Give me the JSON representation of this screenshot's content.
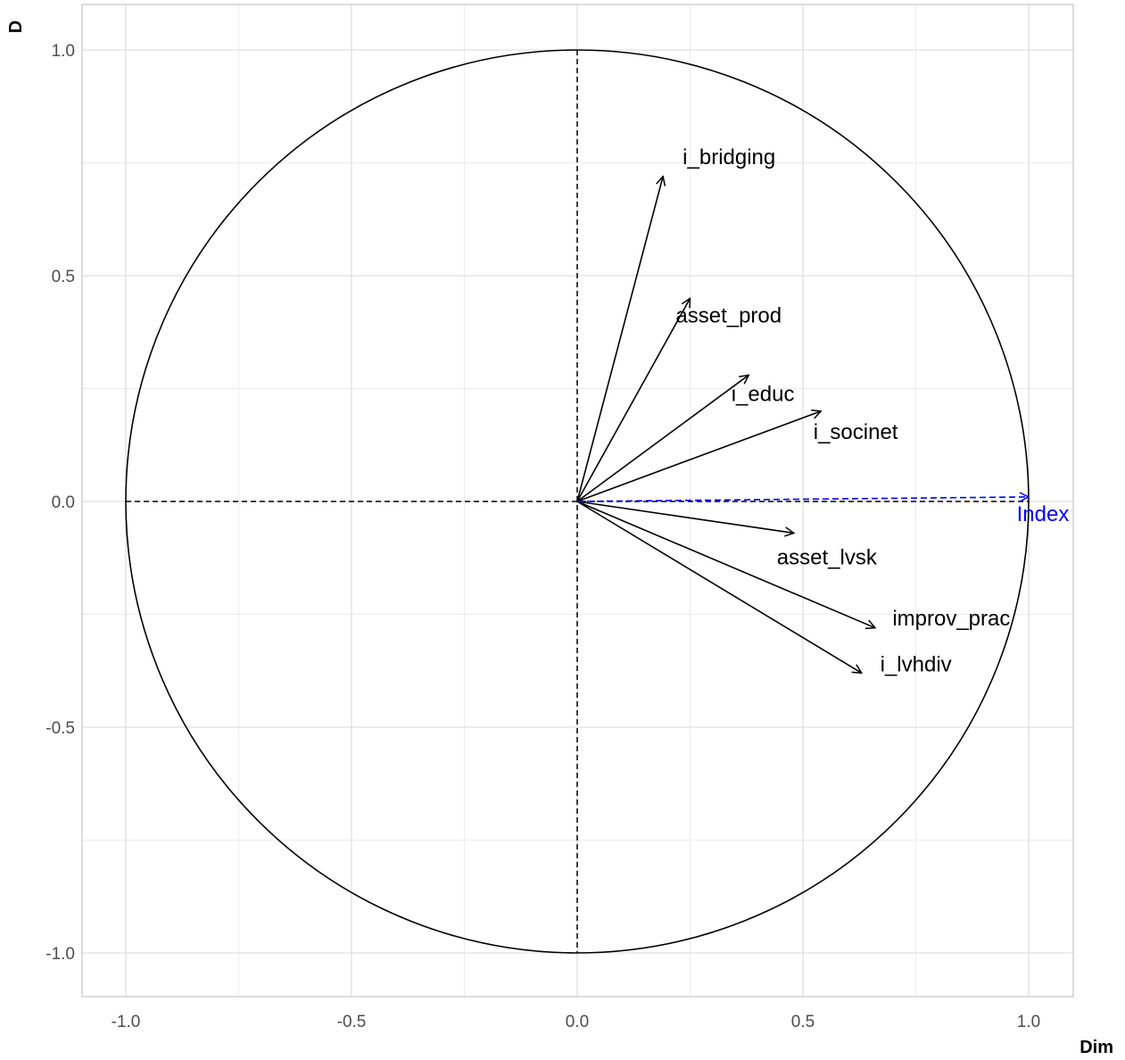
{
  "chart_data": {
    "type": "scatter",
    "subtype": "correlation-circle",
    "title": "",
    "xlabel": "Dim",
    "ylabel": "D",
    "xlim": [
      -1.1,
      1.1
    ],
    "ylim": [
      -1.1,
      1.1
    ],
    "x_ticks": [
      -1.0,
      -0.5,
      0.0,
      0.5,
      1.0
    ],
    "y_ticks": [
      -1.0,
      -0.5,
      0.0,
      0.5,
      1.0
    ],
    "x_tick_labels": [
      "-1.0",
      "-0.5",
      "0.0",
      "0.5",
      "1.0"
    ],
    "y_tick_labels": [
      "-1.0",
      "-0.5",
      "0.0",
      "0.5",
      "1.0"
    ],
    "grid": true,
    "unit_circle": true,
    "colors": {
      "active": "#000000",
      "supplementary": "#0000ff",
      "grid": "#d9d9d9"
    },
    "variables": [
      {
        "name": "i_bridging",
        "x": 0.19,
        "y": 0.72,
        "supplementary": false
      },
      {
        "name": "asset_prod",
        "x": 0.25,
        "y": 0.45,
        "supplementary": false
      },
      {
        "name": "i_educ",
        "x": 0.38,
        "y": 0.28,
        "supplementary": false
      },
      {
        "name": "i_socinet",
        "x": 0.54,
        "y": 0.2,
        "supplementary": false
      },
      {
        "name": "asset_lvsk",
        "x": 0.48,
        "y": -0.07,
        "supplementary": false
      },
      {
        "name": "improv_prac",
        "x": 0.66,
        "y": -0.28,
        "supplementary": false
      },
      {
        "name": "i_lvhdiv",
        "x": 0.63,
        "y": -0.38,
        "supplementary": false
      },
      {
        "name": "Index",
        "x": 1.0,
        "y": 0.01,
        "supplementary": true
      }
    ]
  }
}
